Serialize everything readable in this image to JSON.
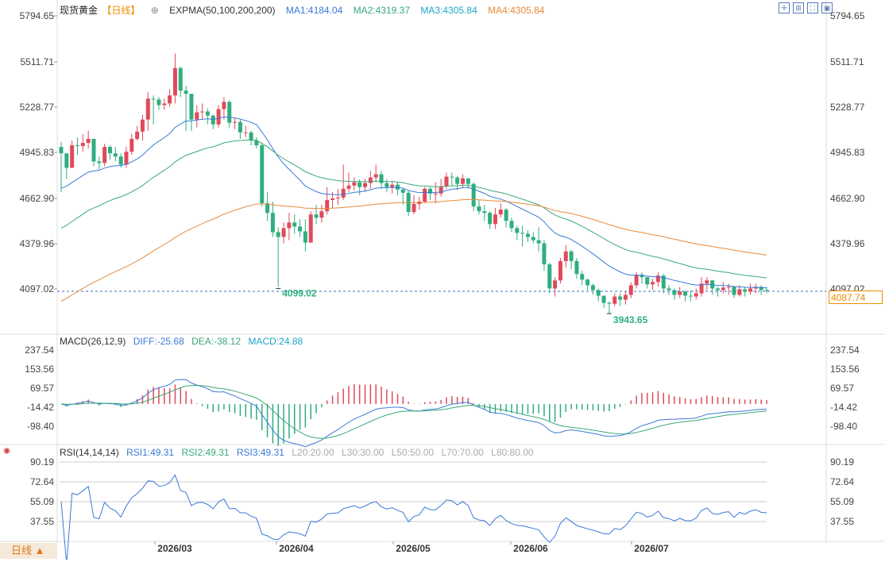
{
  "header": {
    "title": "现货黄金",
    "period": "【日线】",
    "indicator": "EXPMA(50,100,200,200)",
    "ma1": "MA1:4184.04",
    "ma2": "MA2:4319.37",
    "ma3": "MA3:4305.84",
    "ma4": "MA4:4305.84"
  },
  "macd_header": {
    "name": "MACD(26,12,9)",
    "diff": "DIFF:-25.68",
    "dea": "DEA:-38.12",
    "macd": "MACD:24.88"
  },
  "rsi_header": {
    "name": "RSI(14,14,14)",
    "rsi1": "RSI1:49.31",
    "rsi2": "RSI2:49.31",
    "rsi3": "RSI3:49.31",
    "l20": "L20:20.00",
    "l30": "L30:30.00",
    "l50": "L50:50.00",
    "l70": "L70:70.00",
    "l80": "L80:80.00"
  },
  "period_button": "日线 ▲",
  "current_price": "4087.74",
  "colors": {
    "up": "#e04a5a",
    "down": "#2fae7e",
    "ma1": "#3a7ad8",
    "ma2": "#3aa87a",
    "ma3": "#e88a3a"
  },
  "chart_data": [
    {
      "type": "candlestick",
      "y_ticks": [
        "5794.65",
        "5511.71",
        "5228.77",
        "4945.83",
        "4662.90",
        "4379.96",
        "4097.02"
      ],
      "ylim": [
        4097.02,
        5794.65
      ],
      "x_ticks": [
        "2026/03",
        "2026/04",
        "2026/05",
        "2026/06",
        "2026/07"
      ],
      "annotations": {
        "low1": "4099.02",
        "low2": "3943.65"
      },
      "series": {
        "close": [
          4940,
          4850,
          4990,
          4985,
          5005,
          5030,
          4890,
          4880,
          4980,
          4940,
          4920,
          4870,
          4950,
          5030,
          5075,
          5150,
          5280,
          5275,
          5240,
          5250,
          5300,
          5470,
          5330,
          5310,
          5150,
          5195,
          5200,
          5175,
          5120,
          5215,
          5260,
          5130,
          5135,
          5070,
          5070,
          5020,
          4990,
          4630,
          4570,
          4450,
          4420,
          4475,
          4510,
          4485,
          4455,
          4385,
          4560,
          4540,
          4580,
          4650,
          4660,
          4665,
          4720,
          4740,
          4760,
          4730,
          4755,
          4790,
          4810,
          4755,
          4730,
          4745,
          4715,
          4695,
          4575,
          4625,
          4640,
          4720,
          4690,
          4690,
          4735,
          4795,
          4790,
          4750,
          4785,
          4750,
          4610,
          4580,
          4570,
          4500,
          4560,
          4590,
          4520,
          4475,
          4445,
          4440,
          4420,
          4400,
          4380,
          4250,
          4100,
          4150,
          4270,
          4330,
          4270,
          4190,
          4155,
          4120,
          4090,
          4055,
          4010,
          4005,
          4050,
          4030,
          4060,
          4120,
          4185,
          4170,
          4125,
          4140,
          4180,
          4100,
          4090,
          4060,
          4080,
          4055,
          4050,
          4070,
          4130,
          4150,
          4100,
          4090,
          4105,
          4110,
          4060,
          4095,
          4080,
          4100,
          4110,
          4090,
          4087.74
        ],
        "candle_range": [
          [
            4700,
            5010
          ],
          [
            4780,
            4940
          ],
          [
            4880,
            5020
          ],
          [
            4930,
            5040
          ],
          [
            4950,
            5060
          ],
          [
            4970,
            5080
          ],
          [
            4860,
            4960
          ],
          [
            4840,
            4920
          ],
          [
            4860,
            5000
          ],
          [
            4900,
            4990
          ],
          [
            4890,
            4980
          ],
          [
            4850,
            4940
          ],
          [
            4850,
            4980
          ],
          [
            4930,
            5060
          ],
          [
            5020,
            5110
          ],
          [
            5020,
            5180
          ],
          [
            5080,
            5320
          ],
          [
            5120,
            5300
          ],
          [
            5210,
            5290
          ],
          [
            5210,
            5280
          ],
          [
            5230,
            5340
          ],
          [
            5250,
            5560
          ],
          [
            5290,
            5480
          ],
          [
            5080,
            5360
          ],
          [
            5080,
            5200
          ],
          [
            5100,
            5240
          ],
          [
            5150,
            5250
          ],
          [
            5120,
            5220
          ],
          [
            5090,
            5180
          ],
          [
            5100,
            5240
          ],
          [
            5150,
            5290
          ],
          [
            5100,
            5270
          ],
          [
            5090,
            5160
          ],
          [
            5030,
            5150
          ],
          [
            5040,
            5110
          ],
          [
            4990,
            5080
          ],
          [
            4970,
            5040
          ],
          [
            4610,
            5000
          ],
          [
            4520,
            4700
          ],
          [
            4420,
            4640
          ],
          [
            4110,
            4480
          ],
          [
            4380,
            4510
          ],
          [
            4400,
            4570
          ],
          [
            4440,
            4560
          ],
          [
            4420,
            4530
          ],
          [
            4330,
            4530
          ],
          [
            4400,
            4580
          ],
          [
            4500,
            4620
          ],
          [
            4510,
            4620
          ],
          [
            4560,
            4730
          ],
          [
            4600,
            4700
          ],
          [
            4620,
            4720
          ],
          [
            4650,
            4870
          ],
          [
            4700,
            4820
          ],
          [
            4710,
            4790
          ],
          [
            4680,
            4780
          ],
          [
            4700,
            4780
          ],
          [
            4720,
            4830
          ],
          [
            4760,
            4870
          ],
          [
            4720,
            4830
          ],
          [
            4700,
            4780
          ],
          [
            4690,
            4770
          ],
          [
            4680,
            4760
          ],
          [
            4620,
            4720
          ],
          [
            4550,
            4710
          ],
          [
            4560,
            4680
          ],
          [
            4590,
            4670
          ],
          [
            4630,
            4730
          ],
          [
            4650,
            4730
          ],
          [
            4630,
            4760
          ],
          [
            4670,
            4780
          ],
          [
            4720,
            4820
          ],
          [
            4740,
            4820
          ],
          [
            4710,
            4800
          ],
          [
            4730,
            4810
          ],
          [
            4720,
            4780
          ],
          [
            4580,
            4760
          ],
          [
            4560,
            4650
          ],
          [
            4520,
            4620
          ],
          [
            4470,
            4580
          ],
          [
            4470,
            4600
          ],
          [
            4540,
            4630
          ],
          [
            4480,
            4600
          ],
          [
            4450,
            4540
          ],
          [
            4400,
            4490
          ],
          [
            4360,
            4490
          ],
          [
            4390,
            4460
          ],
          [
            4380,
            4450
          ],
          [
            4330,
            4480
          ],
          [
            4210,
            4400
          ],
          [
            4070,
            4260
          ],
          [
            4050,
            4170
          ],
          [
            4130,
            4290
          ],
          [
            4230,
            4370
          ],
          [
            4220,
            4340
          ],
          [
            4160,
            4290
          ],
          [
            4120,
            4210
          ],
          [
            4090,
            4160
          ],
          [
            4060,
            4130
          ],
          [
            4020,
            4100
          ],
          [
            3980,
            4030
          ],
          [
            3943.65,
            4020
          ],
          [
            3990,
            4070
          ],
          [
            3990,
            4070
          ],
          [
            4000,
            4080
          ],
          [
            4040,
            4140
          ],
          [
            4100,
            4200
          ],
          [
            4130,
            4200
          ],
          [
            4100,
            4170
          ],
          [
            4090,
            4160
          ],
          [
            4110,
            4200
          ],
          [
            4070,
            4190
          ],
          [
            4060,
            4120
          ],
          [
            4030,
            4100
          ],
          [
            4040,
            4110
          ],
          [
            4020,
            4090
          ],
          [
            4020,
            4090
          ],
          [
            4030,
            4100
          ],
          [
            4050,
            4170
          ],
          [
            4090,
            4170
          ],
          [
            4060,
            4130
          ],
          [
            4050,
            4110
          ],
          [
            4070,
            4140
          ],
          [
            4060,
            4130
          ],
          [
            4040,
            4090
          ],
          [
            4050,
            4120
          ],
          [
            4050,
            4110
          ],
          [
            4060,
            4130
          ],
          [
            4070,
            4130
          ],
          [
            4060,
            4120
          ],
          [
            4070,
            4110
          ]
        ]
      }
    },
    {
      "type": "bar",
      "title": "MACD(26,12,9)",
      "y_ticks": [
        "237.54",
        "153.56",
        "69.57",
        "-14.42",
        "-98.40"
      ],
      "ylim": [
        -98.4,
        237.54
      ]
    },
    {
      "type": "line",
      "title": "RSI(14,14,14)",
      "y_ticks": [
        "90.19",
        "72.64",
        "55.09",
        "37.55"
      ],
      "ylim": [
        37.55,
        90.19
      ]
    }
  ]
}
